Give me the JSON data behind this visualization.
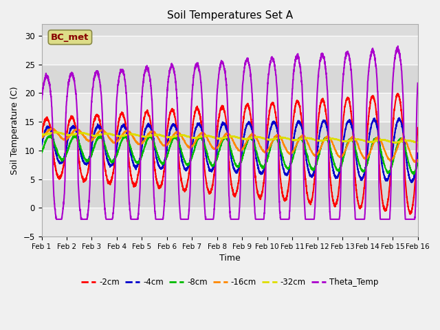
{
  "title": "Soil Temperatures Set A",
  "xlabel": "Time",
  "ylabel": "Soil Temperature (C)",
  "ylim": [
    -5,
    32
  ],
  "xlim": [
    0,
    15
  ],
  "xtick_labels": [
    "Feb 1",
    "Feb 2",
    "Feb 3",
    "Feb 4",
    "Feb 5",
    "Feb 6",
    "Feb 7",
    "Feb 8",
    "Feb 9",
    "Feb 10",
    "Feb 11",
    "Feb 12",
    "Feb 13",
    "Feb 14",
    "Feb 15",
    "Feb 16"
  ],
  "ytick_values": [
    -5,
    0,
    5,
    10,
    15,
    20,
    25,
    30
  ],
  "plot_bg_color": "#dcdcdc",
  "fig_bg_color": "#f0f0f0",
  "series_colors": {
    "m2cm": "#ff0000",
    "m4cm": "#0000cc",
    "m8cm": "#00bb00",
    "m16cm": "#ff8800",
    "m32cm": "#dddd00",
    "theta": "#aa00cc"
  },
  "series_labels": {
    "m2cm": "-2cm",
    "m4cm": "-4cm",
    "m8cm": "-8cm",
    "m16cm": "-16cm",
    "m32cm": "-32cm",
    "theta": "Theta_Temp"
  },
  "label_box": "BC_met",
  "label_box_color": "#dddd88",
  "label_box_text_color": "#880000",
  "grid_color": "#ffffff",
  "linewidth": 1.5
}
